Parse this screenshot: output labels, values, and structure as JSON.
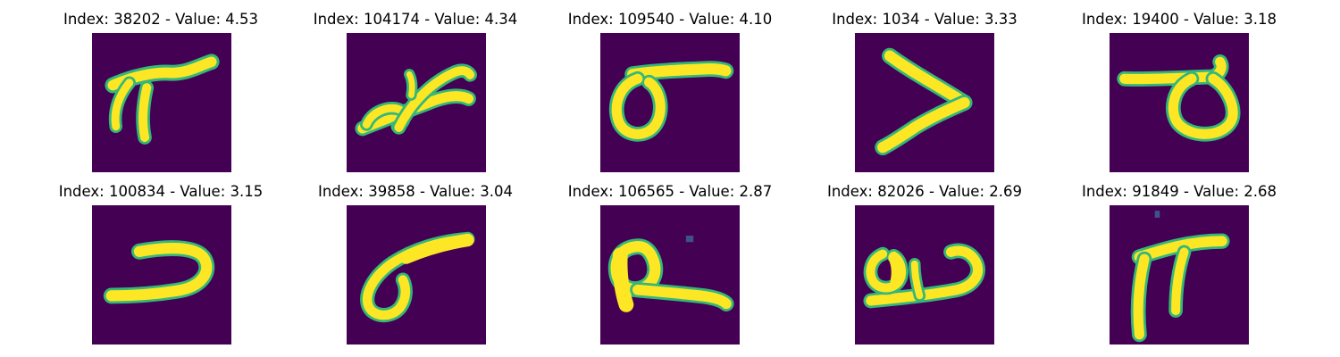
{
  "colors": {
    "background": "#440154",
    "stroke": "#fde725",
    "edge": "#35b779",
    "faint": "#3b528b"
  },
  "grid": {
    "rows": 2,
    "cols": 5,
    "row_titles_y": [
      "12",
      "205"
    ]
  },
  "panels": [
    {
      "title": "Index: 38202 - Value: 4.53",
      "glyph": "pi-like-1"
    },
    {
      "title": "Index: 104174 - Value: 4.34",
      "glyph": "bird-like"
    },
    {
      "title": "Index: 109540 - Value: 4.10",
      "glyph": "loop-bar"
    },
    {
      "title": "Index: 1034 - Value: 3.33",
      "glyph": "chevron"
    },
    {
      "title": "Index: 19400 - Value: 3.18",
      "glyph": "hook-loop"
    },
    {
      "title": "Index: 100834 - Value: 3.15",
      "glyph": "u-curve"
    },
    {
      "title": "Index: 39858 - Value: 3.04",
      "glyph": "six-like"
    },
    {
      "title": "Index: 106565 - Value: 2.87",
      "glyph": "p-loop"
    },
    {
      "title": "Index: 82026 - Value: 2.69",
      "glyph": "u-loop"
    },
    {
      "title": "Index: 91849 - Value: 2.68",
      "glyph": "pi-like-2"
    }
  ]
}
